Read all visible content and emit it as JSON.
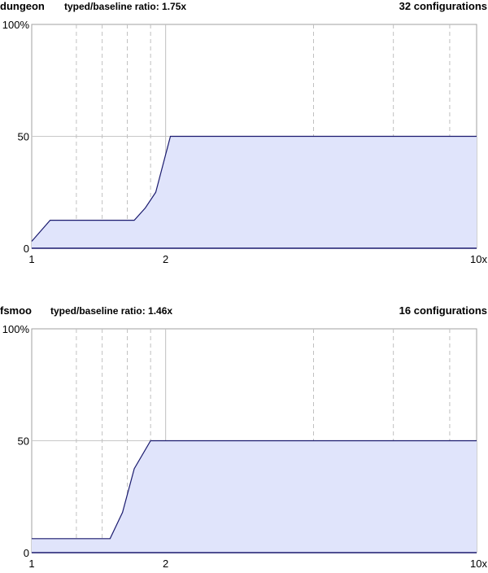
{
  "chart_data": [
    {
      "type": "area",
      "title": "dungeon",
      "subtitle": "typed/baseline ratio: 1.75x",
      "annotation": "32 configurations",
      "x_scale": "log",
      "xlim": [
        1,
        10
      ],
      "ylim": [
        0,
        100
      ],
      "x_ticks": [
        1,
        2,
        10
      ],
      "x_tick_labels": [
        "1",
        "2",
        "10x"
      ],
      "y_ticks": [
        0,
        50,
        100
      ],
      "y_tick_labels": [
        "0",
        "50",
        "100%"
      ],
      "dashed_gridlines_x": [
        1.26,
        1.44,
        1.64,
        1.85,
        4.3,
        6.5,
        8.7
      ],
      "solid_gridlines_x": [
        2
      ],
      "grid": true,
      "fill_color": "#e0e4fb",
      "line_color": "#1a1a6e",
      "x": [
        1.0,
        1.1,
        1.22,
        1.4,
        1.7,
        1.8,
        1.9,
        2.05,
        3.0,
        5.0,
        10.0
      ],
      "y": [
        3.1,
        12.5,
        12.5,
        12.5,
        12.5,
        18.0,
        25.0,
        50.0,
        50.0,
        50.0,
        50.0
      ]
    },
    {
      "type": "area",
      "title": "fsmoo",
      "subtitle": "typed/baseline ratio: 1.46x",
      "annotation": "16 configurations",
      "x_scale": "log",
      "xlim": [
        1,
        10
      ],
      "ylim": [
        0,
        100
      ],
      "x_ticks": [
        1,
        2,
        10
      ],
      "x_tick_labels": [
        "1",
        "2",
        "10x"
      ],
      "y_ticks": [
        0,
        50,
        100
      ],
      "y_tick_labels": [
        "0",
        "50",
        "100%"
      ],
      "dashed_gridlines_x": [
        1.26,
        1.44,
        1.64,
        1.85,
        4.3,
        6.5,
        8.7
      ],
      "solid_gridlines_x": [
        2
      ],
      "grid": true,
      "fill_color": "#e0e4fb",
      "line_color": "#1a1a6e",
      "x": [
        1.0,
        1.2,
        1.4,
        1.5,
        1.6,
        1.7,
        1.85,
        2.0,
        3.0,
        5.0,
        10.0
      ],
      "y": [
        6.25,
        6.25,
        6.25,
        6.25,
        18.0,
        37.5,
        50.0,
        50.0,
        50.0,
        50.0,
        50.0
      ]
    }
  ]
}
